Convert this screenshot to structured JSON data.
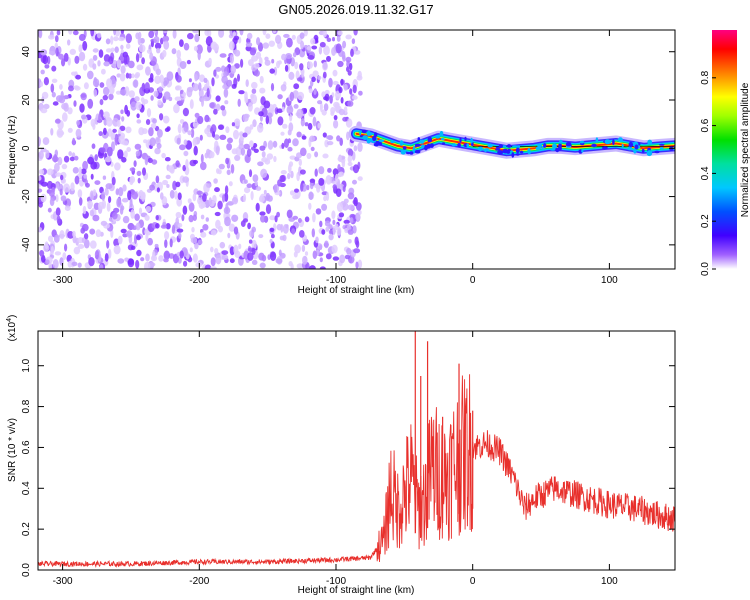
{
  "title": "GN05.2026.019.11.32.G17",
  "chart_data": [
    {
      "type": "heatmap",
      "xlabel": "Height of straight line (km)",
      "ylabel": "Frequency (Hz)",
      "xlim": [
        -318,
        148
      ],
      "ylim": [
        -50,
        49
      ],
      "xticks": [
        -300,
        -200,
        -100,
        0,
        100
      ],
      "yticks": [
        -40,
        -20,
        0,
        20,
        40
      ],
      "colorbar": {
        "label": "Normalized spectral amplitude",
        "range": [
          0,
          1
        ],
        "ticks": [
          0.0,
          0.2,
          0.4,
          0.6,
          0.8
        ]
      },
      "noise_region_x": [
        -318,
        -82
      ],
      "signal_trace": [
        {
          "x": -85,
          "y": 6
        },
        {
          "x": -75,
          "y": 5
        },
        {
          "x": -65,
          "y": 3
        },
        {
          "x": -55,
          "y": 1
        },
        {
          "x": -45,
          "y": 0
        },
        {
          "x": -35,
          "y": 2
        },
        {
          "x": -25,
          "y": 4
        },
        {
          "x": -15,
          "y": 3
        },
        {
          "x": -5,
          "y": 2
        },
        {
          "x": 5,
          "y": 1
        },
        {
          "x": 15,
          "y": 0
        },
        {
          "x": 25,
          "y": -1
        },
        {
          "x": 35,
          "y": -0.5
        },
        {
          "x": 45,
          "y": 0
        },
        {
          "x": 55,
          "y": 1
        },
        {
          "x": 65,
          "y": 1
        },
        {
          "x": 75,
          "y": 0.5
        },
        {
          "x": 85,
          "y": 1
        },
        {
          "x": 95,
          "y": 1.5
        },
        {
          "x": 105,
          "y": 2
        },
        {
          "x": 115,
          "y": 1
        },
        {
          "x": 125,
          "y": 0
        },
        {
          "x": 135,
          "y": 0.5
        },
        {
          "x": 148,
          "y": 1
        }
      ]
    },
    {
      "type": "line",
      "xlabel": "Height of straight line (km)",
      "ylabel": "SNR (10 * v/v)",
      "ylabel_multiplier": "(x10",
      "ylabel_exponent": "4",
      "ylabel_multiplier_close": ")",
      "xlim": [
        -318,
        148
      ],
      "ylim": [
        0,
        1.17
      ],
      "xticks": [
        -300,
        -200,
        -100,
        0,
        100
      ],
      "yticks": [
        0.0,
        0.2,
        0.4,
        0.6,
        0.8,
        1.0
      ],
      "color": "#e8302c",
      "series_envelope": [
        {
          "x": -318,
          "y": 0.03
        },
        {
          "x": -250,
          "y": 0.03
        },
        {
          "x": -200,
          "y": 0.04
        },
        {
          "x": -150,
          "y": 0.04
        },
        {
          "x": -100,
          "y": 0.05
        },
        {
          "x": -75,
          "y": 0.06
        },
        {
          "x": -65,
          "y": 0.15
        },
        {
          "x": -60,
          "y": 0.4
        },
        {
          "x": -55,
          "y": 0.3
        },
        {
          "x": -45,
          "y": 0.45
        },
        {
          "x": -40,
          "y": 0.3
        },
        {
          "x": -35,
          "y": 0.35
        },
        {
          "x": -30,
          "y": 0.5
        },
        {
          "x": -20,
          "y": 0.45
        },
        {
          "x": -10,
          "y": 0.55
        },
        {
          "x": 0,
          "y": 0.6
        },
        {
          "x": 10,
          "y": 0.62
        },
        {
          "x": 20,
          "y": 0.58
        },
        {
          "x": 30,
          "y": 0.45
        },
        {
          "x": 38,
          "y": 0.3
        },
        {
          "x": 45,
          "y": 0.35
        },
        {
          "x": 60,
          "y": 0.4
        },
        {
          "x": 80,
          "y": 0.36
        },
        {
          "x": 100,
          "y": 0.32
        },
        {
          "x": 120,
          "y": 0.3
        },
        {
          "x": 135,
          "y": 0.27
        },
        {
          "x": 148,
          "y": 0.25
        }
      ],
      "spikes": [
        {
          "x": -42,
          "y": 1.17
        },
        {
          "x": -38,
          "y": 0.95
        },
        {
          "x": -33,
          "y": 1.12
        },
        {
          "x": -22,
          "y": 0.75
        },
        {
          "x": -10,
          "y": 1.01
        },
        {
          "x": 0,
          "y": 0.78
        }
      ]
    }
  ]
}
